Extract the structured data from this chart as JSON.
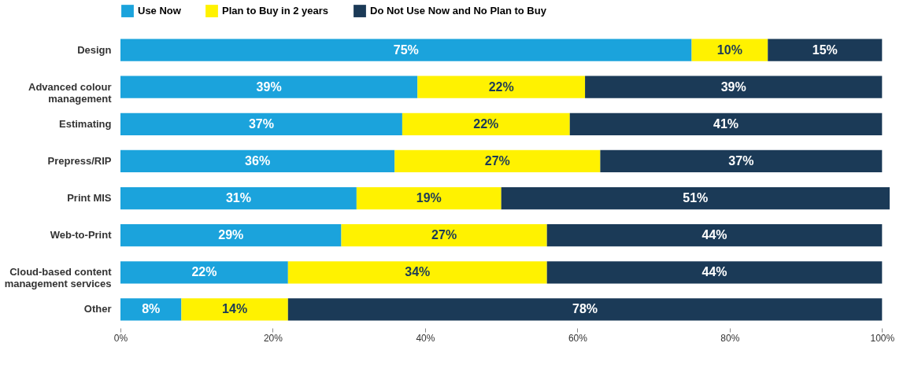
{
  "chart_data": {
    "type": "bar",
    "orientation": "horizontal",
    "stacked": true,
    "categories": [
      "Design",
      "Advanced colour management",
      "Estimating",
      "Prepress/RIP",
      "Print MIS",
      "Web-to-Print",
      "Cloud-based content management services",
      "Other"
    ],
    "series": [
      {
        "name": "Use Now",
        "color": "#1ba3dc",
        "values": [
          75,
          39,
          37,
          36,
          31,
          29,
          22,
          8
        ],
        "value_labels": [
          "75%",
          "39%",
          "37%",
          "36%",
          "31%",
          "29%",
          "22%",
          "8%"
        ]
      },
      {
        "name": "Plan to Buy in 2 years",
        "color": "#fff200",
        "values": [
          10,
          22,
          22,
          27,
          19,
          27,
          34,
          14
        ],
        "value_labels": [
          "10%",
          "22%",
          "22%",
          "27%",
          "19%",
          "27%",
          "34%",
          "14%"
        ]
      },
      {
        "name": "Do Not Use Now and No Plan to Buy",
        "color": "#1b3a57",
        "values": [
          15,
          39,
          41,
          37,
          51,
          44,
          44,
          78
        ],
        "value_labels": [
          "15%",
          "39%",
          "41%",
          "37%",
          "51%",
          "44%",
          "44%",
          "78%"
        ]
      }
    ],
    "xlim": [
      0,
      101
    ],
    "xticks": [
      {
        "value": 0,
        "label": "0%"
      },
      {
        "value": 20,
        "label": "20%"
      },
      {
        "value": 40,
        "label": "40%"
      },
      {
        "value": 60,
        "label": "60%"
      },
      {
        "value": 80,
        "label": "80%"
      },
      {
        "value": 100,
        "label": "100%"
      }
    ],
    "legend": "top",
    "grid": false
  }
}
